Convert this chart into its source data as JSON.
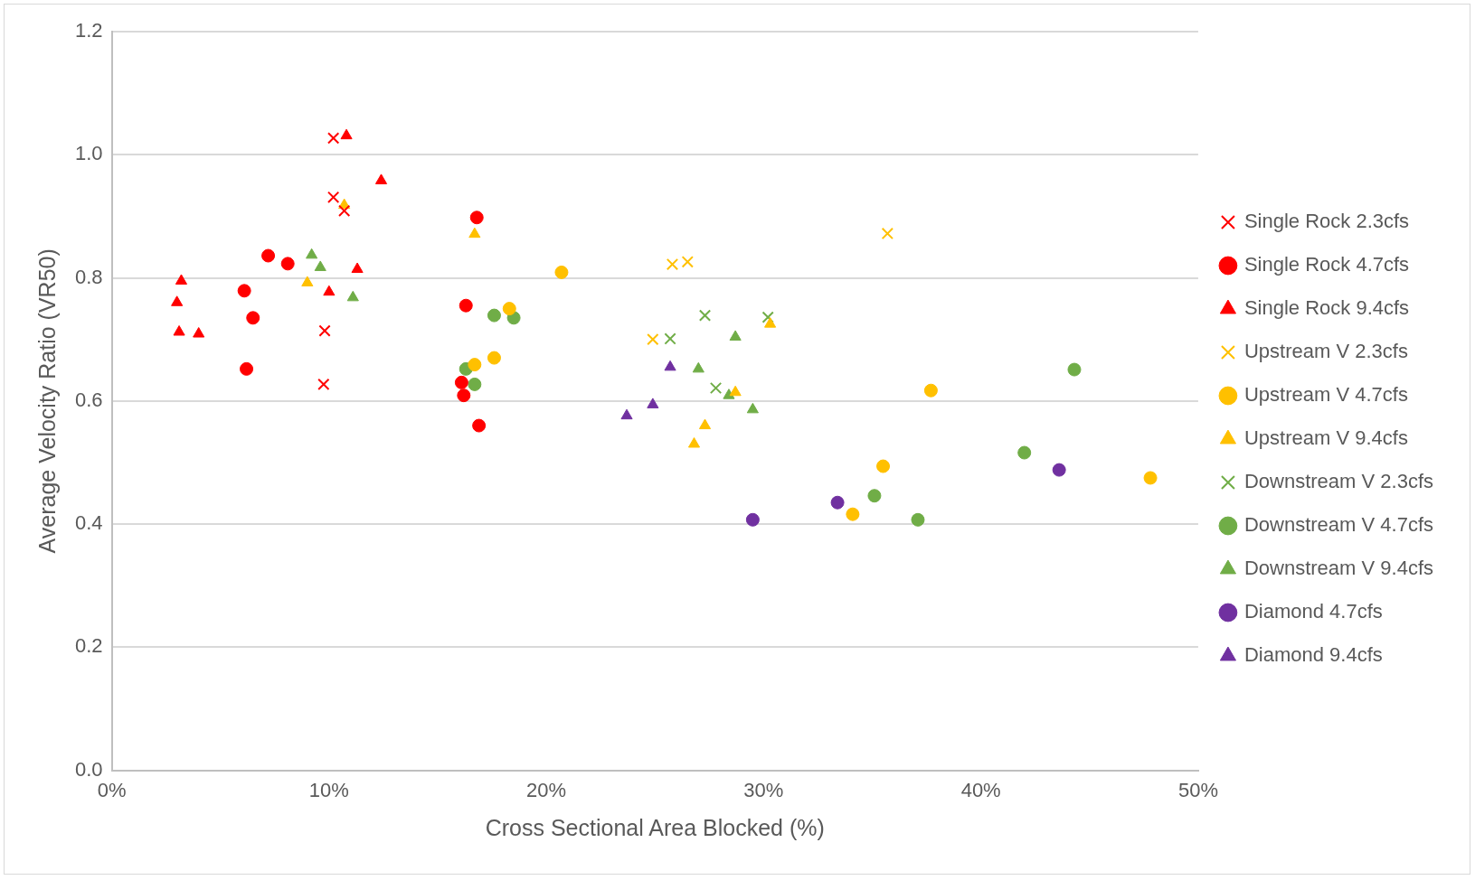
{
  "chart_data": {
    "type": "scatter",
    "xlabel": "Cross Sectional Area Blocked (%)",
    "ylabel": "Average Velocity Ratio (VR50)",
    "xlim": [
      0,
      50
    ],
    "xticks": [
      {
        "value": 0,
        "label": "0%"
      },
      {
        "value": 10,
        "label": "10%"
      },
      {
        "value": 20,
        "label": "20%"
      },
      {
        "value": 30,
        "label": "30%"
      },
      {
        "value": 40,
        "label": "40%"
      },
      {
        "value": 50,
        "label": "50%"
      }
    ],
    "ylim": [
      0,
      1.2
    ],
    "yticks": [
      {
        "value": 0,
        "label": "0.0"
      },
      {
        "value": 0.2,
        "label": "0.2"
      },
      {
        "value": 0.4,
        "label": "0.4"
      },
      {
        "value": 0.6,
        "label": "0.6"
      },
      {
        "value": 0.8,
        "label": "0.8"
      },
      {
        "value": 1.0,
        "label": "1.0"
      },
      {
        "value": 1.2,
        "label": "1.2"
      }
    ],
    "grid": "y",
    "legend": "right",
    "series": [
      {
        "name": "Single Rock 2.3cfs",
        "color": "#ff0000",
        "marker": "cross",
        "x": [
          10.2,
          10.2,
          10.7,
          9.8,
          9.75
        ],
        "values": [
          1.027,
          0.931,
          0.909,
          0.714,
          0.627
        ]
      },
      {
        "name": "Single Rock 4.7cfs",
        "color": "#ff0000",
        "marker": "circle",
        "x": [
          7.2,
          8.1,
          6.1,
          6.5,
          6.2,
          16.8,
          16.3,
          16.1,
          16.2,
          16.9
        ],
        "values": [
          0.836,
          0.823,
          0.779,
          0.735,
          0.652,
          0.898,
          0.755,
          0.63,
          0.609,
          0.56
        ]
      },
      {
        "name": "Single Rock 9.4cfs",
        "color": "#ff0000",
        "marker": "triangle",
        "x": [
          10.8,
          12.4,
          3.2,
          3.0,
          3.1,
          4.0,
          11.3,
          10.0
        ],
        "values": [
          1.031,
          0.958,
          0.795,
          0.76,
          0.712,
          0.709,
          0.814,
          0.777
        ]
      },
      {
        "name": "Upstream V 2.3cfs",
        "color": "#ffc000",
        "marker": "cross",
        "x": [
          35.7,
          25.8,
          26.5,
          24.9
        ],
        "values": [
          0.872,
          0.822,
          0.826,
          0.7
        ]
      },
      {
        "name": "Upstream V 4.7cfs",
        "color": "#ffc000",
        "marker": "circle",
        "x": [
          20.7,
          18.3,
          17.6,
          16.7,
          37.7,
          35.5,
          34.1,
          47.8
        ],
        "values": [
          0.809,
          0.75,
          0.67,
          0.659,
          0.617,
          0.494,
          0.416,
          0.475
        ]
      },
      {
        "name": "Upstream V 9.4cfs",
        "color": "#ffc000",
        "marker": "triangle",
        "x": [
          10.7,
          16.7,
          9.0,
          30.3,
          28.7,
          27.3,
          26.8
        ],
        "values": [
          0.918,
          0.871,
          0.792,
          0.725,
          0.614,
          0.56,
          0.53
        ]
      },
      {
        "name": "Downstream V 2.3cfs",
        "color": "#70ad47",
        "marker": "cross",
        "x": [
          27.3,
          30.2,
          25.7,
          27.8
        ],
        "values": [
          0.739,
          0.736,
          0.701,
          0.621
        ]
      },
      {
        "name": "Downstream V 4.7cfs",
        "color": "#70ad47",
        "marker": "circle",
        "x": [
          17.6,
          18.5,
          16.3,
          16.7,
          44.3,
          42.0,
          35.1,
          37.1
        ],
        "values": [
          0.739,
          0.735,
          0.652,
          0.627,
          0.651,
          0.516,
          0.446,
          0.407
        ]
      },
      {
        "name": "Downstream V 9.4cfs",
        "color": "#70ad47",
        "marker": "triangle",
        "x": [
          9.2,
          9.6,
          11.1,
          28.7,
          27.0,
          28.4,
          29.5
        ],
        "values": [
          0.837,
          0.817,
          0.768,
          0.704,
          0.652,
          0.609,
          0.586
        ]
      },
      {
        "name": "Diamond 4.7cfs",
        "color": "#7030a0",
        "marker": "circle",
        "x": [
          29.5,
          33.4,
          43.6
        ],
        "values": [
          0.407,
          0.435,
          0.488
        ]
      },
      {
        "name": "Diamond 9.4cfs",
        "color": "#7030a0",
        "marker": "triangle",
        "x": [
          23.7,
          24.9,
          25.7
        ],
        "values": [
          0.576,
          0.594,
          0.655
        ]
      }
    ]
  }
}
